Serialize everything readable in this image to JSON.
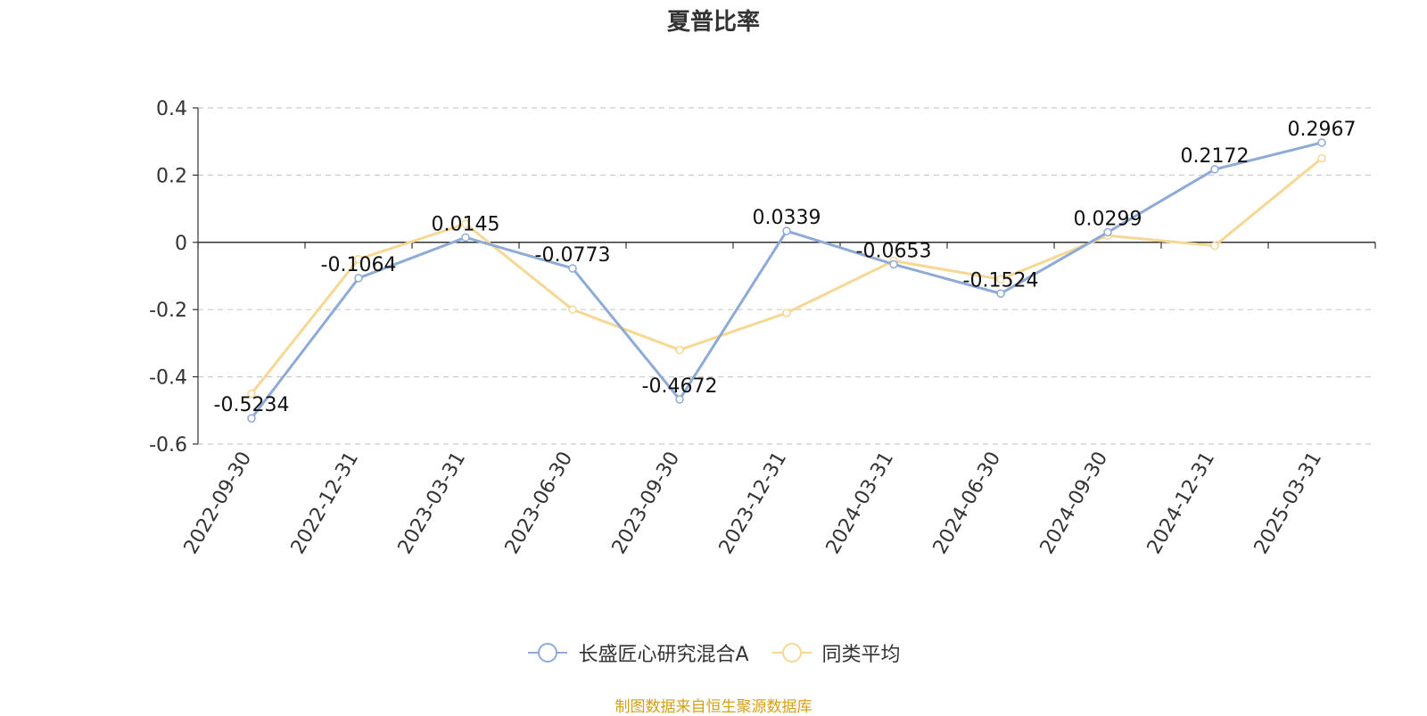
{
  "chart_data": {
    "type": "line",
    "title": "夏普比率",
    "categories": [
      "2022-09-30",
      "2022-12-31",
      "2023-03-31",
      "2023-06-30",
      "2023-09-30",
      "2023-12-31",
      "2024-03-31",
      "2024-06-30",
      "2024-09-30",
      "2024-12-31",
      "2025-03-31"
    ],
    "ylim": [
      -0.6,
      0.4
    ],
    "yticks": [
      "0.4",
      "0.2",
      "0",
      "-0.2",
      "-0.4",
      "-0.6"
    ],
    "grid": true,
    "legend_position": "bottom",
    "series": [
      {
        "name": "长盛匠心研究混合A",
        "color": "#8eaad6",
        "values": [
          -0.5234,
          -0.1064,
          0.0145,
          -0.0773,
          -0.4672,
          0.0339,
          -0.0653,
          -0.1524,
          0.0299,
          0.2172,
          0.2967
        ],
        "labels": [
          "-0.5234",
          "-0.1064",
          "0.0145",
          "-0.0773",
          "-0.4672",
          "0.0339",
          "-0.0653",
          "-0.1524",
          "0.0299",
          "0.2172",
          "0.2967"
        ]
      },
      {
        "name": "同类平均",
        "color": "#f7d794",
        "values": [
          -0.45,
          -0.05,
          0.055,
          -0.2,
          -0.32,
          -0.21,
          -0.055,
          -0.11,
          0.02,
          -0.01,
          0.25
        ]
      }
    ]
  },
  "source_note": "制图数据来自恒生聚源数据库"
}
